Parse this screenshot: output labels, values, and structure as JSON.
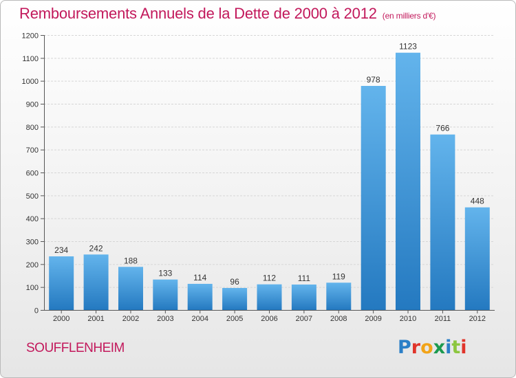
{
  "header": {
    "title": "Remboursements Annuels de la Dette de 2000 à 2012",
    "unit": "(en milliers d'€)"
  },
  "footer": {
    "commune": "SOUFFLENHEIM",
    "logo_letters": [
      "P",
      "r",
      "o",
      "x",
      "i",
      "t",
      "i"
    ]
  },
  "colors": {
    "title": "#c2185b",
    "bar_light": "#63b4ec",
    "bar_dark": "#2479c0",
    "grid": "#d6d6d6"
  },
  "chart_data": {
    "type": "bar",
    "title": "Remboursements Annuels de la Dette de 2000 à 2012",
    "xlabel": "",
    "ylabel": "",
    "categories": [
      "2000",
      "2001",
      "2002",
      "2003",
      "2004",
      "2005",
      "2006",
      "2007",
      "2008",
      "2009",
      "2010",
      "2011",
      "2012"
    ],
    "values": [
      234,
      242,
      188,
      133,
      114,
      96,
      112,
      111,
      119,
      978,
      1123,
      766,
      448
    ],
    "ylim": [
      0,
      1200
    ],
    "yticks": [
      0,
      100,
      200,
      300,
      400,
      500,
      600,
      700,
      800,
      900,
      1000,
      1100,
      1200
    ],
    "grid": true,
    "legend": "none"
  }
}
